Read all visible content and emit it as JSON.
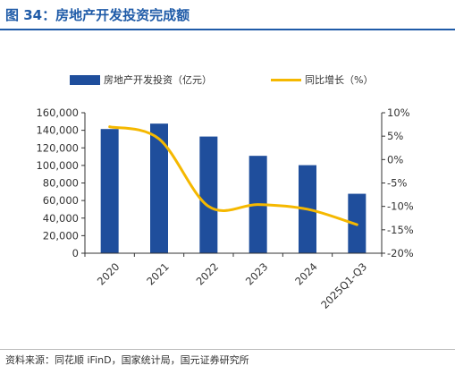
{
  "title": "图 34：房地产开发投资完成额",
  "source": "资料来源：同花顺 iFinD，国家统计局，国元证券研究所",
  "colors": {
    "title": "#1f5ba8",
    "bar": "#1f4e9c",
    "line": "#f5b800"
  },
  "chart_data": {
    "type": "bar",
    "categories": [
      "2020",
      "2021",
      "2022",
      "2023",
      "2024",
      "2025Q1-Q3"
    ],
    "series": [
      {
        "name": "房地产开发投资（亿元）",
        "type": "bar",
        "axis": "left",
        "values": [
          141443,
          147602,
          132895,
          110913,
          100280,
          67706
        ]
      },
      {
        "name": "同比增长（%）",
        "type": "line",
        "axis": "right",
        "values": [
          7.0,
          4.4,
          -10.0,
          -9.6,
          -10.6,
          -13.9
        ]
      }
    ],
    "left_axis": {
      "min": 0,
      "max": 160000,
      "ticks": [
        "0",
        "20,000",
        "40,000",
        "60,000",
        "80,000",
        "100,000",
        "120,000",
        "140,000",
        "160,000"
      ]
    },
    "right_axis": {
      "min": -20,
      "max": 10,
      "ticks": [
        "-20%",
        "-15%",
        "-10%",
        "-5%",
        "0%",
        "5%",
        "10%"
      ]
    },
    "legend": "top",
    "grid": false
  }
}
